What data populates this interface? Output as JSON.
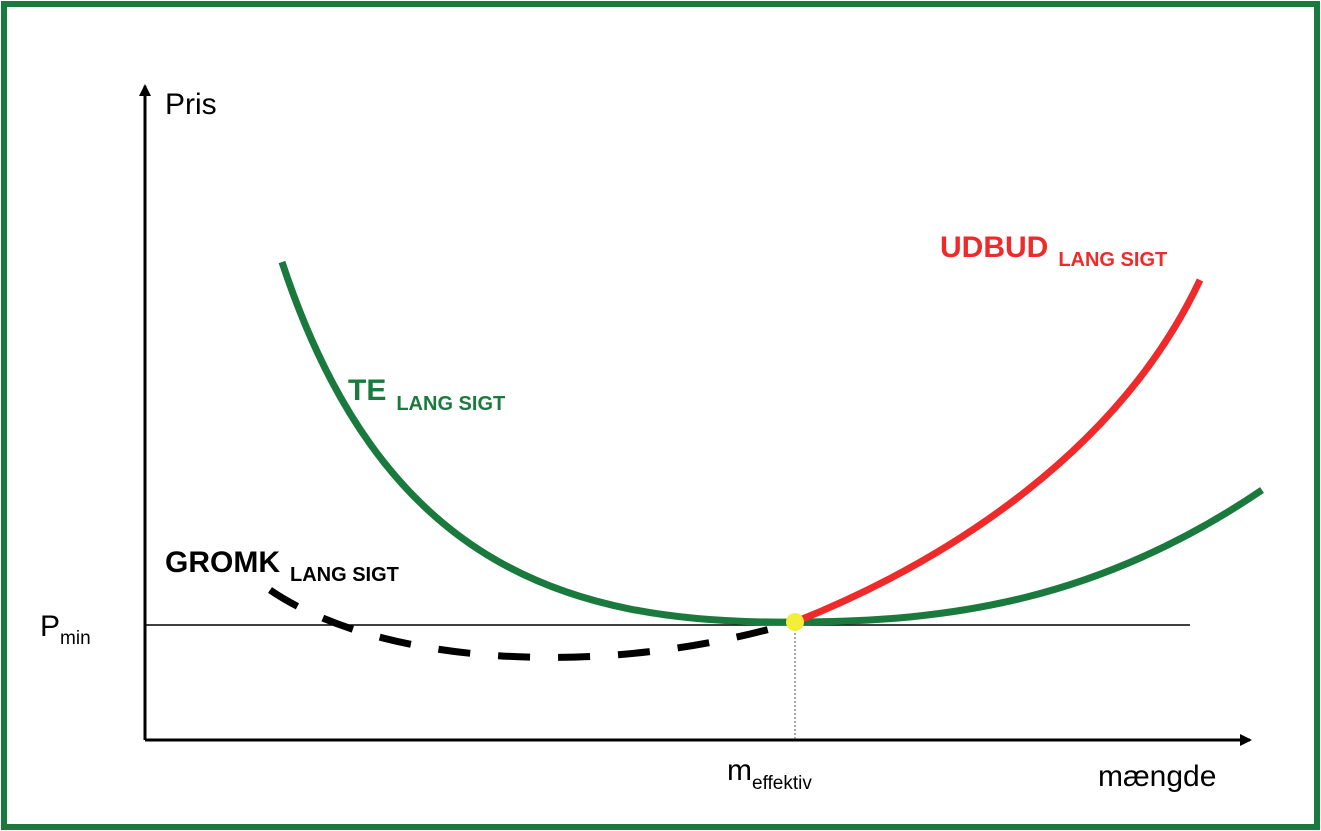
{
  "axes": {
    "y_label": "Pris",
    "x_label": "mængde"
  },
  "markers": {
    "p_min": {
      "main": "P",
      "sub": "min"
    },
    "m_effektiv": {
      "main": "m",
      "sub": "effektiv"
    }
  },
  "curves": [
    {
      "label": "TE",
      "sub": "LANG SIGT"
    },
    {
      "label": "UDBUD",
      "sub": "LANG SIGT"
    },
    {
      "label": "GROMK",
      "sub": "LANG SIGT"
    }
  ]
}
